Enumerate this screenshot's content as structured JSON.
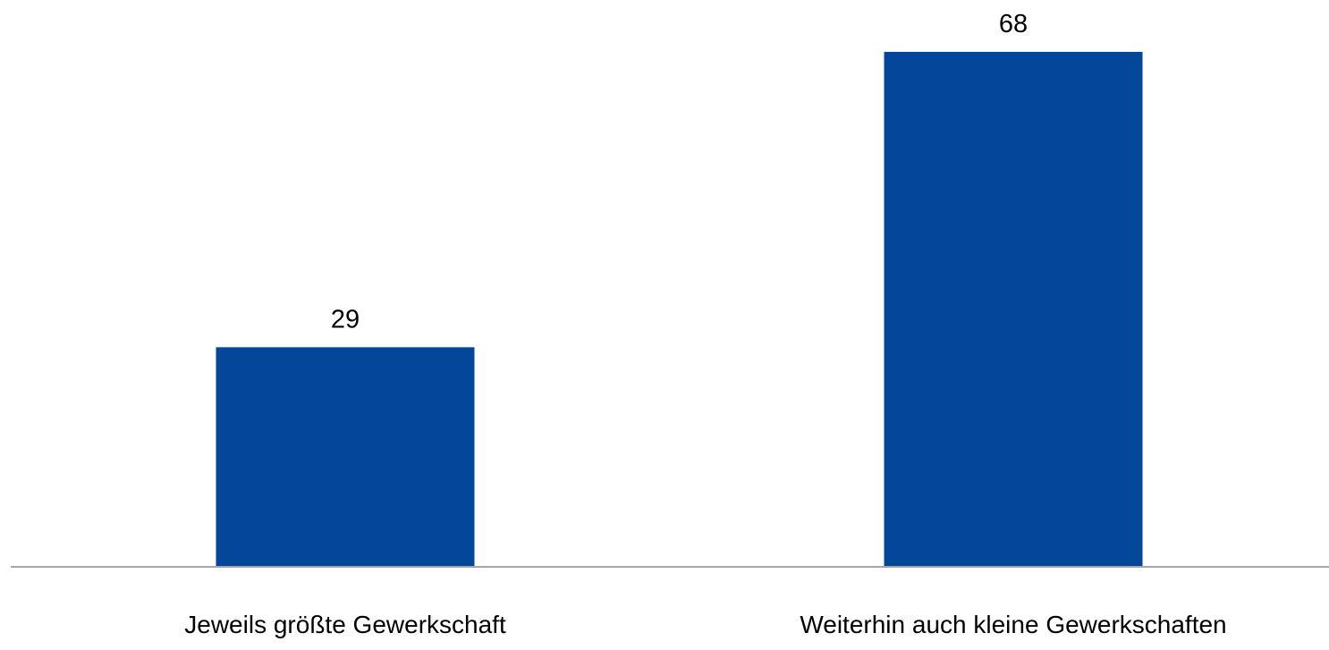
{
  "chart_data": {
    "type": "bar",
    "categories": [
      "Jeweils größte Gewerkschaft",
      "Weiterhin auch kleine Gewerkschaften"
    ],
    "values": [
      29,
      68
    ],
    "data_labels": [
      "29",
      "68"
    ],
    "ylim": [
      0,
      68
    ],
    "grid": false,
    "legend": "none",
    "bar_color": "#03479b",
    "axis_color": "#a6a6a6"
  }
}
